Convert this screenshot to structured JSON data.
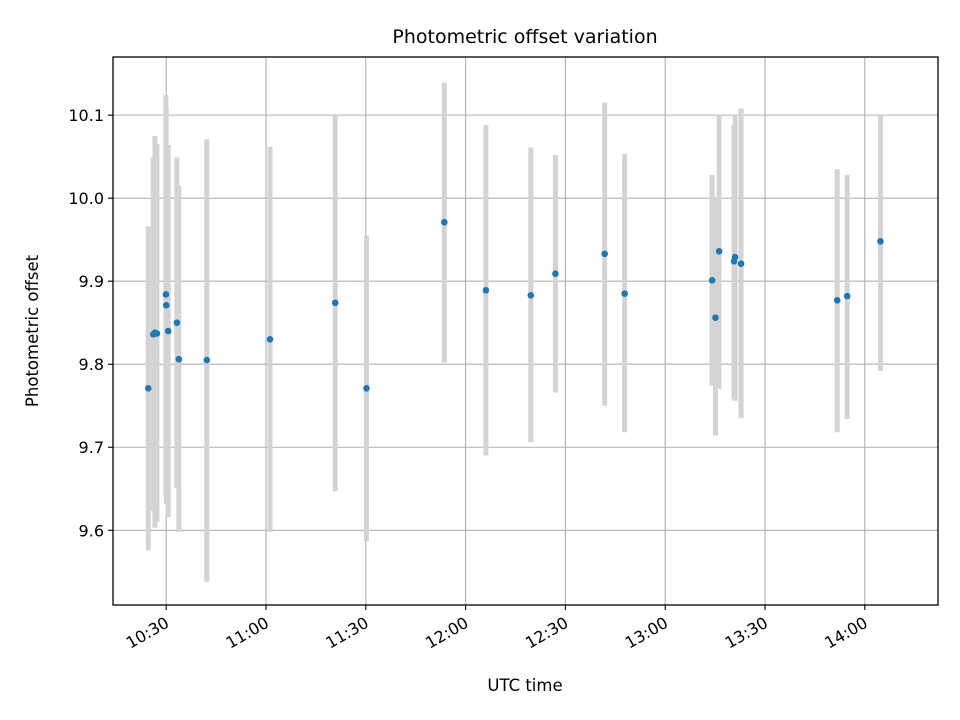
{
  "chart_data": {
    "type": "scatter",
    "title": "Photometric offset variation",
    "xlabel": "UTC time",
    "ylabel": "Photometric offset",
    "x_axis_type": "time",
    "xlim": [
      "10:14:00",
      "14:22:00"
    ],
    "ylim": [
      9.51,
      10.17
    ],
    "x_ticks": [
      "10:30",
      "11:00",
      "11:30",
      "12:00",
      "12:30",
      "13:00",
      "13:30",
      "14:00"
    ],
    "y_ticks": [
      9.6,
      9.7,
      9.8,
      9.9,
      10.0,
      10.1
    ],
    "y_tick_labels": [
      "9.6",
      "9.7",
      "9.8",
      "9.9",
      "10.0",
      "10.1"
    ],
    "x_tick_rotation_deg": 30,
    "grid": true,
    "legend": null,
    "colors": {
      "marker": "#1f77b4",
      "error_bar": "#d3d3d3",
      "grid": "#b0b0b0"
    },
    "series": [
      {
        "points": [
          {
            "t": "10:24:36",
            "y": 9.771,
            "ylo": 9.576,
            "yhi": 9.966
          },
          {
            "t": "10:26:06",
            "y": 9.836,
            "ylo": 9.623,
            "yhi": 10.049
          },
          {
            "t": "10:26:36",
            "y": 9.838,
            "ylo": 9.603,
            "yhi": 10.075
          },
          {
            "t": "10:27:12",
            "y": 9.837,
            "ylo": 9.61,
            "yhi": 10.065
          },
          {
            "t": "10:29:54",
            "y": 9.884,
            "ylo": 9.644,
            "yhi": 10.124
          },
          {
            "t": "10:30:00",
            "y": 9.871,
            "ylo": 9.632,
            "yhi": 10.11
          },
          {
            "t": "10:30:36",
            "y": 9.84,
            "ylo": 9.616,
            "yhi": 10.064
          },
          {
            "t": "10:33:12",
            "y": 9.85,
            "ylo": 9.651,
            "yhi": 10.049
          },
          {
            "t": "10:33:48",
            "y": 9.806,
            "ylo": 9.598,
            "yhi": 10.015
          },
          {
            "t": "10:42:12",
            "y": 9.805,
            "ylo": 9.538,
            "yhi": 10.071
          },
          {
            "t": "11:01:12",
            "y": 9.83,
            "ylo": 9.598,
            "yhi": 10.062
          },
          {
            "t": "11:20:48",
            "y": 9.874,
            "ylo": 9.647,
            "yhi": 10.101
          },
          {
            "t": "11:30:12",
            "y": 9.771,
            "ylo": 9.587,
            "yhi": 9.955
          },
          {
            "t": "11:53:36",
            "y": 9.971,
            "ylo": 9.802,
            "yhi": 10.139
          },
          {
            "t": "12:06:06",
            "y": 9.889,
            "ylo": 9.69,
            "yhi": 10.088
          },
          {
            "t": "12:19:36",
            "y": 9.883,
            "ylo": 9.706,
            "yhi": 10.061
          },
          {
            "t": "12:27:00",
            "y": 9.909,
            "ylo": 9.766,
            "yhi": 10.052
          },
          {
            "t": "12:41:48",
            "y": 9.933,
            "ylo": 9.75,
            "yhi": 10.115
          },
          {
            "t": "12:47:48",
            "y": 9.885,
            "ylo": 9.718,
            "yhi": 10.053
          },
          {
            "t": "13:14:06",
            "y": 9.901,
            "ylo": 9.774,
            "yhi": 10.028
          },
          {
            "t": "13:15:06",
            "y": 9.856,
            "ylo": 9.714,
            "yhi": 9.999
          },
          {
            "t": "13:16:12",
            "y": 9.936,
            "ylo": 9.77,
            "yhi": 10.101
          },
          {
            "t": "13:20:42",
            "y": 9.924,
            "ylo": 9.758,
            "yhi": 10.088
          },
          {
            "t": "13:21:00",
            "y": 9.929,
            "ylo": 9.756,
            "yhi": 10.101
          },
          {
            "t": "13:22:48",
            "y": 9.921,
            "ylo": 9.735,
            "yhi": 10.108
          },
          {
            "t": "13:51:42",
            "y": 9.877,
            "ylo": 9.718,
            "yhi": 10.035
          },
          {
            "t": "13:54:42",
            "y": 9.882,
            "ylo": 9.734,
            "yhi": 10.028
          },
          {
            "t": "14:04:42",
            "y": 9.948,
            "ylo": 9.792,
            "yhi": 10.101
          }
        ]
      }
    ]
  }
}
